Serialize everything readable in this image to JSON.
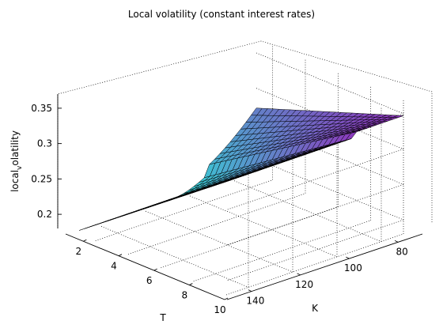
{
  "chart_data": {
    "type": "surface",
    "title": "Local volatility (constant interest rates)",
    "xlabel": "K",
    "ylabel": "T",
    "zlabel_main": "local",
    "zlabel_sub": "v",
    "zlabel_rest": "olatility",
    "k_ticks": [
      "80",
      "100",
      "120",
      "140"
    ],
    "k_tick_values": [
      80,
      100,
      120,
      140
    ],
    "t_ticks": [
      "2",
      "4",
      "6",
      "8",
      "10"
    ],
    "t_tick_values": [
      2,
      4,
      6,
      8,
      10
    ],
    "z_ticks": [
      "0.2",
      "0.25",
      "0.3",
      "0.35"
    ],
    "z_tick_values": [
      0.2,
      0.25,
      0.3,
      0.35
    ],
    "k_range": [
      70,
      150
    ],
    "t_range": [
      1,
      10
    ],
    "z_range": [
      0.18,
      0.37
    ],
    "grid": true,
    "colormap": "cool",
    "colormap_low": "#33d6d6",
    "colormap_high": "#9a1fb8",
    "surface_samples": {
      "T": [
        1,
        2,
        4,
        6,
        8,
        10
      ],
      "K_near_money": [
        100,
        110,
        120,
        130,
        140,
        150
      ],
      "vol_at_K_150": [
        0.185,
        0.2,
        0.235,
        0.27,
        0.305,
        0.34
      ],
      "vol_at_K_70": [
        0.3,
        0.31,
        0.325,
        0.34,
        0.355,
        0.365
      ]
    }
  }
}
